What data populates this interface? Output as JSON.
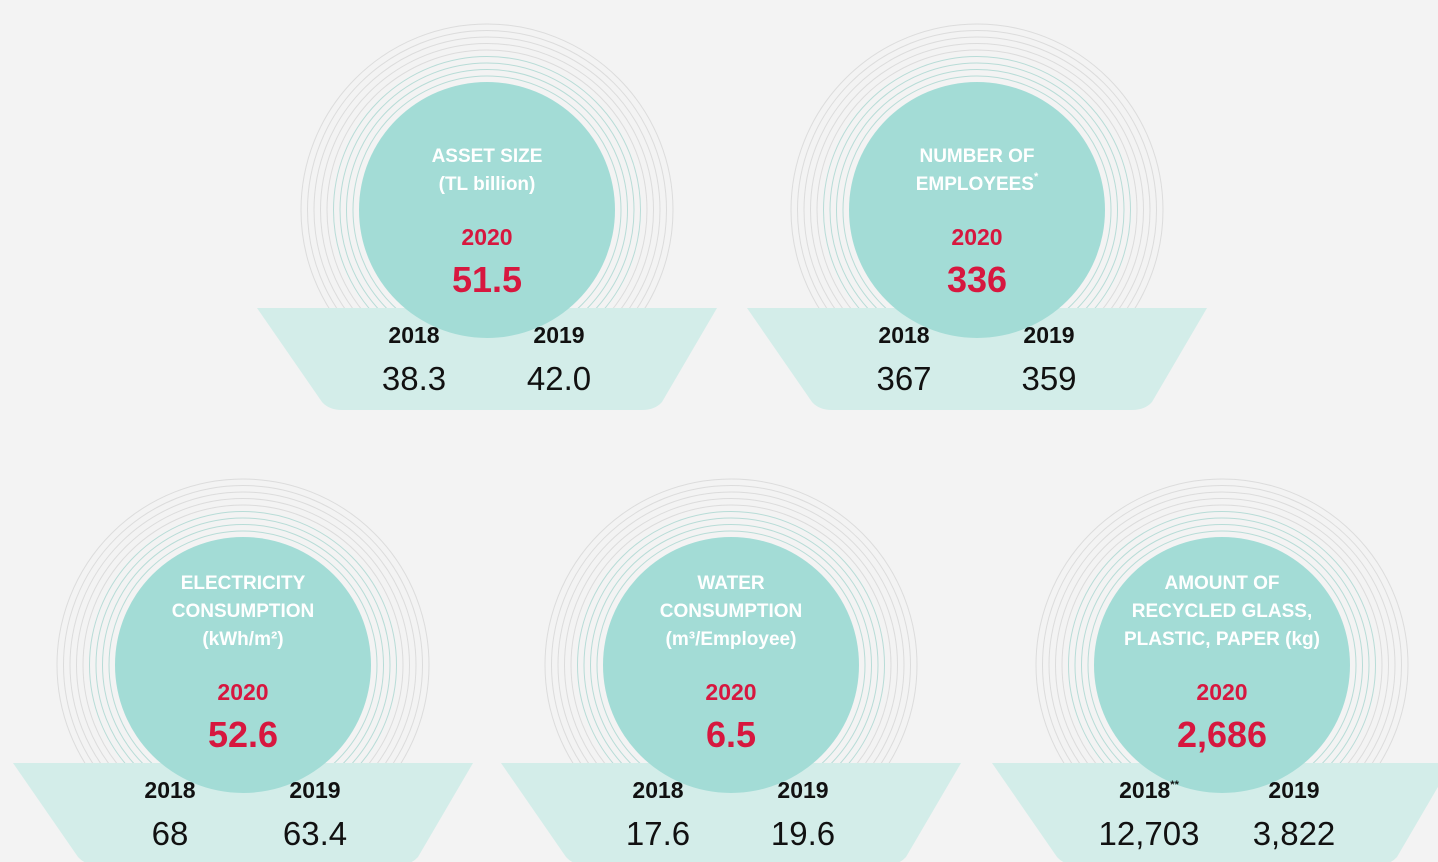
{
  "cards": [
    {
      "title": [
        "ASSET SIZE",
        "(TL billion)"
      ],
      "current_year": "2020",
      "current_value": "51.5",
      "years": [
        {
          "year": "2018",
          "value": "38.3"
        },
        {
          "year": "2019",
          "value": "42.0"
        }
      ]
    },
    {
      "title": [
        "NUMBER OF",
        {
          "text": "EMPLOYEES",
          "sup": "*"
        }
      ],
      "current_year": "2020",
      "current_value": "336",
      "years": [
        {
          "year": "2018",
          "value": "367"
        },
        {
          "year": "2019",
          "value": "359"
        }
      ]
    },
    {
      "title": [
        "ELECTRICITY",
        "CONSUMPTION",
        "(kWh/m²)"
      ],
      "current_year": "2020",
      "current_value": "52.6",
      "years": [
        {
          "year": "2018",
          "value": "68"
        },
        {
          "year": "2019",
          "value": "63.4"
        }
      ]
    },
    {
      "title": [
        "WATER",
        "CONSUMPTION",
        "(m³/Employee)"
      ],
      "current_year": "2020",
      "current_value": "6.5",
      "years": [
        {
          "year": "2018",
          "value": "17.6"
        },
        {
          "year": "2019",
          "value": "19.6"
        }
      ]
    },
    {
      "title": [
        "AMOUNT OF",
        "RECYCLED GLASS,",
        "PLASTIC, PAPER (kg)"
      ],
      "current_year": "2020",
      "current_value": "2,686",
      "years": [
        {
          "year": "2018",
          "sup": "**",
          "value": "12,703"
        },
        {
          "year": "2019",
          "value": "3,822"
        }
      ]
    }
  ]
}
